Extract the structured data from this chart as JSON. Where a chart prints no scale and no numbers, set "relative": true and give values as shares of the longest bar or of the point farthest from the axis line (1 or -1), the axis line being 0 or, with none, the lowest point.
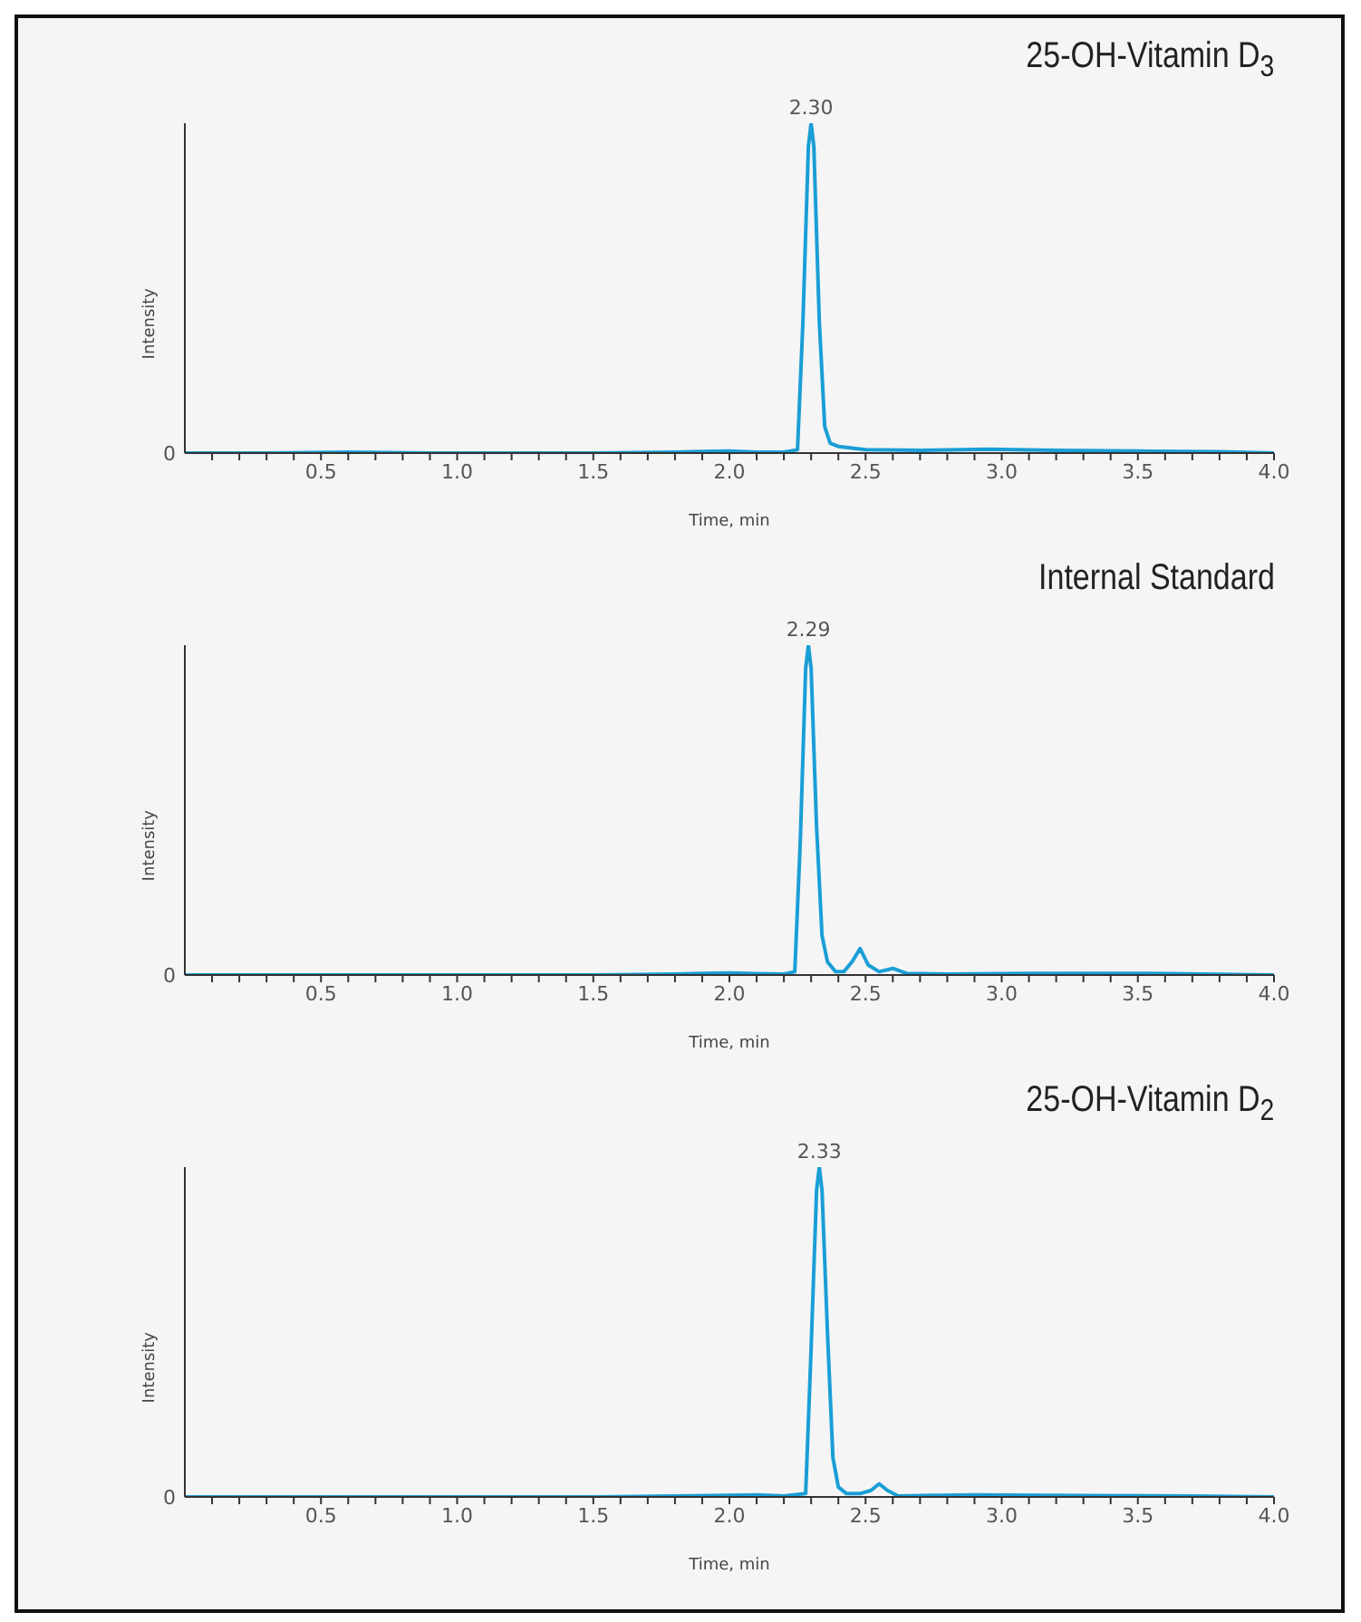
{
  "chart_data": [
    {
      "type": "line",
      "title": "25-OH-Vitamin D$_{3}$",
      "xlabel": "Time, min",
      "ylabel": "Intensity",
      "relative": true,
      "marker": "none",
      "line_style": "solid",
      "grid": false,
      "legend": false,
      "x": [
        0,
        0.3,
        0.6,
        0.9,
        1.2,
        1.5,
        1.8,
        2.0,
        2.1,
        2.2,
        2.25,
        2.27,
        2.29,
        2.3,
        2.31,
        2.33,
        2.35,
        2.37,
        2.4,
        2.45,
        2.5,
        2.7,
        2.95,
        3.2,
        3.5,
        3.8,
        4.0
      ],
      "series": [
        {
          "color": "#1a9ed6",
          "values": [
            0,
            0,
            0.003,
            0,
            0,
            0,
            0.003,
            0.006,
            0.003,
            0.003,
            0.01,
            0.4,
            0.93,
            1,
            0.93,
            0.4,
            0.08,
            0.03,
            0.02,
            0.015,
            0.01,
            0.008,
            0.012,
            0.008,
            0.006,
            0.004,
            0
          ]
        }
      ],
      "xlim": [
        0,
        4
      ],
      "xticks": [
        {
          "value": 0.1,
          "label": null
        },
        {
          "value": 0.2,
          "label": null
        },
        {
          "value": 0.3,
          "label": null
        },
        {
          "value": 0.4,
          "label": null
        },
        0.5,
        {
          "value": 0.6,
          "label": null
        },
        {
          "value": 0.7,
          "label": null
        },
        {
          "value": 0.8,
          "label": null
        },
        {
          "value": 0.9,
          "label": null
        },
        {
          "value": 1,
          "label": "1.0"
        },
        {
          "value": 1.1,
          "label": null
        },
        {
          "value": 1.2,
          "label": null
        },
        {
          "value": 1.3,
          "label": null
        },
        {
          "value": 1.4,
          "label": null
        },
        1.5,
        {
          "value": 1.6,
          "label": null
        },
        {
          "value": 1.7,
          "label": null
        },
        {
          "value": 1.8,
          "label": null
        },
        {
          "value": 1.9,
          "label": null
        },
        {
          "value": 2,
          "label": "2.0"
        },
        {
          "value": 2.1,
          "label": null
        },
        {
          "value": 2.2,
          "label": null
        },
        {
          "value": 2.3,
          "label": null
        },
        {
          "value": 2.4,
          "label": null
        },
        2.5,
        {
          "value": 2.6,
          "label": null
        },
        {
          "value": 2.7,
          "label": null
        },
        {
          "value": 2.8,
          "label": null
        },
        {
          "value": 2.9,
          "label": null
        },
        {
          "value": 3,
          "label": "3.0"
        },
        {
          "value": 3.1,
          "label": null
        },
        {
          "value": 3.2,
          "label": null
        },
        {
          "value": 3.3,
          "label": null
        },
        {
          "value": 3.4,
          "label": null
        },
        3.5,
        {
          "value": 3.6,
          "label": null
        },
        {
          "value": 3.7,
          "label": null
        },
        {
          "value": 3.8,
          "label": null
        },
        {
          "value": 3.9,
          "label": null
        },
        {
          "value": 4,
          "label": "4.0"
        }
      ],
      "annotations": [
        {
          "text": "2.30",
          "x": 2.3,
          "y": 1
        },
        {
          "text": "0",
          "x": 0,
          "y": 0
        }
      ]
    },
    {
      "type": "line",
      "title": "Internal Standard",
      "xlabel": "Time, min",
      "ylabel": "Intensity",
      "relative": true,
      "marker": "none",
      "line_style": "solid",
      "grid": false,
      "legend": false,
      "x": [
        0,
        0.3,
        0.6,
        0.9,
        1.2,
        1.5,
        1.8,
        2.0,
        2.1,
        2.2,
        2.24,
        2.26,
        2.28,
        2.29,
        2.3,
        2.32,
        2.34,
        2.36,
        2.39,
        2.42,
        2.45,
        2.48,
        2.51,
        2.55,
        2.6,
        2.65,
        2.8,
        3.1,
        3.55,
        3.8,
        4.0
      ],
      "series": [
        {
          "color": "#1a9ed6",
          "values": [
            0,
            0,
            0,
            0,
            0,
            0,
            0.003,
            0.006,
            0.004,
            0.003,
            0.01,
            0.4,
            0.93,
            1,
            0.93,
            0.45,
            0.12,
            0.04,
            0.01,
            0.01,
            0.04,
            0.08,
            0.03,
            0.01,
            0.02,
            0.005,
            0.003,
            0.005,
            0.005,
            0.002,
            0
          ]
        }
      ],
      "xlim": [
        0,
        4
      ],
      "xticks": [
        {
          "value": 0.1,
          "label": null
        },
        {
          "value": 0.2,
          "label": null
        },
        {
          "value": 0.3,
          "label": null
        },
        {
          "value": 0.4,
          "label": null
        },
        0.5,
        {
          "value": 0.6,
          "label": null
        },
        {
          "value": 0.7,
          "label": null
        },
        {
          "value": 0.8,
          "label": null
        },
        {
          "value": 0.9,
          "label": null
        },
        {
          "value": 1,
          "label": "1.0"
        },
        {
          "value": 1.1,
          "label": null
        },
        {
          "value": 1.2,
          "label": null
        },
        {
          "value": 1.3,
          "label": null
        },
        {
          "value": 1.4,
          "label": null
        },
        1.5,
        {
          "value": 1.6,
          "label": null
        },
        {
          "value": 1.7,
          "label": null
        },
        {
          "value": 1.8,
          "label": null
        },
        {
          "value": 1.9,
          "label": null
        },
        {
          "value": 2,
          "label": "2.0"
        },
        {
          "value": 2.1,
          "label": null
        },
        {
          "value": 2.2,
          "label": null
        },
        {
          "value": 2.3,
          "label": null
        },
        {
          "value": 2.4,
          "label": null
        },
        2.5,
        {
          "value": 2.6,
          "label": null
        },
        {
          "value": 2.7,
          "label": null
        },
        {
          "value": 2.8,
          "label": null
        },
        {
          "value": 2.9,
          "label": null
        },
        {
          "value": 3,
          "label": "3.0"
        },
        {
          "value": 3.1,
          "label": null
        },
        {
          "value": 3.2,
          "label": null
        },
        {
          "value": 3.3,
          "label": null
        },
        {
          "value": 3.4,
          "label": null
        },
        3.5,
        {
          "value": 3.6,
          "label": null
        },
        {
          "value": 3.7,
          "label": null
        },
        {
          "value": 3.8,
          "label": null
        },
        {
          "value": 3.9,
          "label": null
        },
        {
          "value": 4,
          "label": "4.0"
        }
      ],
      "annotations": [
        {
          "text": "2.29",
          "x": 2.29,
          "y": 1
        },
        {
          "text": "0",
          "x": 0,
          "y": 0
        }
      ]
    },
    {
      "type": "line",
      "title": "25-OH-Vitamin D$_{2}$",
      "xlabel": "Time, min",
      "ylabel": "Intensity",
      "relative": true,
      "marker": "none",
      "line_style": "solid",
      "grid": false,
      "legend": false,
      "x": [
        0,
        0.3,
        0.6,
        0.9,
        1.2,
        1.5,
        1.8,
        2.0,
        2.1,
        2.2,
        2.28,
        2.3,
        2.32,
        2.33,
        2.34,
        2.36,
        2.38,
        2.4,
        2.43,
        2.48,
        2.52,
        2.55,
        2.58,
        2.62,
        2.9,
        3.3,
        3.7,
        4.0
      ],
      "series": [
        {
          "color": "#1a9ed6",
          "values": [
            0,
            0,
            0,
            0,
            0,
            0,
            0.003,
            0.005,
            0.006,
            0.003,
            0.01,
            0.45,
            0.93,
            1,
            0.93,
            0.5,
            0.12,
            0.03,
            0.01,
            0.01,
            0.02,
            0.04,
            0.02,
            0.003,
            0.006,
            0.004,
            0.003,
            0
          ]
        }
      ],
      "xlim": [
        0,
        4
      ],
      "xticks": [
        {
          "value": 0.1,
          "label": null
        },
        {
          "value": 0.2,
          "label": null
        },
        {
          "value": 0.3,
          "label": null
        },
        {
          "value": 0.4,
          "label": null
        },
        0.5,
        {
          "value": 0.6,
          "label": null
        },
        {
          "value": 0.7,
          "label": null
        },
        {
          "value": 0.8,
          "label": null
        },
        {
          "value": 0.9,
          "label": null
        },
        {
          "value": 1,
          "label": "1.0"
        },
        {
          "value": 1.1,
          "label": null
        },
        {
          "value": 1.2,
          "label": null
        },
        {
          "value": 1.3,
          "label": null
        },
        {
          "value": 1.4,
          "label": null
        },
        1.5,
        {
          "value": 1.6,
          "label": null
        },
        {
          "value": 1.7,
          "label": null
        },
        {
          "value": 1.8,
          "label": null
        },
        {
          "value": 1.9,
          "label": null
        },
        {
          "value": 2,
          "label": "2.0"
        },
        {
          "value": 2.1,
          "label": null
        },
        {
          "value": 2.2,
          "label": null
        },
        {
          "value": 2.3,
          "label": null
        },
        {
          "value": 2.4,
          "label": null
        },
        2.5,
        {
          "value": 2.6,
          "label": null
        },
        {
          "value": 2.7,
          "label": null
        },
        {
          "value": 2.8,
          "label": null
        },
        {
          "value": 2.9,
          "label": null
        },
        {
          "value": 3,
          "label": "3.0"
        },
        {
          "value": 3.1,
          "label": null
        },
        {
          "value": 3.2,
          "label": null
        },
        {
          "value": 3.3,
          "label": null
        },
        {
          "value": 3.4,
          "label": null
        },
        3.5,
        {
          "value": 3.6,
          "label": null
        },
        {
          "value": 3.7,
          "label": null
        },
        {
          "value": 3.8,
          "label": null
        },
        {
          "value": 3.9,
          "label": null
        },
        {
          "value": 4,
          "label": "4.0"
        }
      ],
      "annotations": [
        {
          "text": "2.33",
          "x": 2.33,
          "y": 1
        },
        {
          "text": "0",
          "x": 0,
          "y": 0
        }
      ]
    }
  ]
}
